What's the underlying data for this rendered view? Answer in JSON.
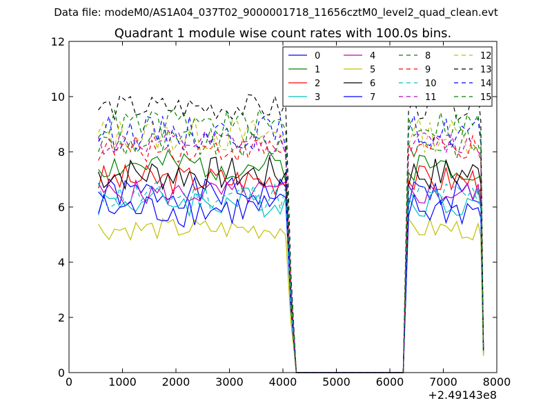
{
  "chart_data": {
    "type": "line",
    "suptitle": "Data file: modeM0/AS1A04_037T02_9000001718_11656cztM0_level2_quad_clean.evt",
    "title": "Quadrant 1 module wise count rates with 100.0s bins.",
    "xlabel": "",
    "ylabel": "",
    "x_offset_label": "+2.49143e8",
    "xlim": [
      0,
      8000
    ],
    "ylim": [
      0,
      12
    ],
    "xticks": [
      "0",
      "1000",
      "2000",
      "3000",
      "4000",
      "5000",
      "6000",
      "7000",
      "8000"
    ],
    "yticks": [
      "0",
      "2",
      "4",
      "6",
      "8",
      "10",
      "12"
    ],
    "legend_position": "top-right",
    "segment1_x": [
      550,
      650,
      750,
      850,
      950,
      1050,
      1150,
      1250,
      1350,
      1450,
      1550,
      1650,
      1750,
      1850,
      1950,
      2050,
      2150,
      2250,
      2350,
      2450,
      2550,
      2650,
      2750,
      2850,
      2950,
      3050,
      3150,
      3250,
      3350,
      3450,
      3550,
      3650,
      3750,
      3850,
      3950,
      4050
    ],
    "gap_x": [
      4150,
      4250,
      6250
    ],
    "segment2_x": [
      6350,
      6450,
      6550,
      6650,
      6750,
      6850,
      6950,
      7050,
      7150,
      7250,
      7350,
      7450,
      7550,
      7650,
      7700,
      7750
    ],
    "series": [
      {
        "name": "0",
        "color": "#0000ff",
        "dash": "solid",
        "base": 6.5,
        "amp": 0.35,
        "seed": 1
      },
      {
        "name": "1",
        "color": "#008000",
        "dash": "solid",
        "base": 7.5,
        "amp": 0.35,
        "seed": 2
      },
      {
        "name": "2",
        "color": "#ff0000",
        "dash": "solid",
        "base": 7.0,
        "amp": 0.35,
        "seed": 3
      },
      {
        "name": "3",
        "color": "#00bfbf",
        "dash": "solid",
        "base": 6.2,
        "amp": 0.35,
        "seed": 4
      },
      {
        "name": "4",
        "color": "#bf00bf",
        "dash": "solid",
        "base": 6.5,
        "amp": 0.3,
        "seed": 5
      },
      {
        "name": "5",
        "color": "#bfbf00",
        "dash": "solid",
        "base": 5.2,
        "amp": 0.25,
        "seed": 6
      },
      {
        "name": "6",
        "color": "#000000",
        "dash": "solid",
        "base": 7.2,
        "amp": 0.4,
        "seed": 7
      },
      {
        "name": "7",
        "color": "#0000ff",
        "dash": "solid",
        "base": 5.9,
        "amp": 0.4,
        "seed": 8
      },
      {
        "name": "8",
        "color": "#008000",
        "dash": "dashed",
        "base": 8.3,
        "amp": 0.35,
        "seed": 9
      },
      {
        "name": "9",
        "color": "#ff0000",
        "dash": "dashed",
        "base": 8.1,
        "amp": 0.3,
        "seed": 10
      },
      {
        "name": "10",
        "color": "#00bfbf",
        "dash": "dashed",
        "base": 6.4,
        "amp": 0.35,
        "seed": 11
      },
      {
        "name": "11",
        "color": "#bf00bf",
        "dash": "dashed",
        "base": 8.3,
        "amp": 0.3,
        "seed": 12
      },
      {
        "name": "12",
        "color": "#bfbf00",
        "dash": "dashed",
        "base": 8.6,
        "amp": 0.4,
        "seed": 13
      },
      {
        "name": "13",
        "color": "#000000",
        "dash": "dashed",
        "base": 9.6,
        "amp": 0.3,
        "seed": 14
      },
      {
        "name": "14",
        "color": "#0000ff",
        "dash": "dashed",
        "base": 8.7,
        "amp": 0.4,
        "seed": 15
      },
      {
        "name": "15",
        "color": "#008000",
        "dash": "dashed",
        "base": 9.0,
        "amp": 0.35,
        "seed": 16
      }
    ]
  }
}
